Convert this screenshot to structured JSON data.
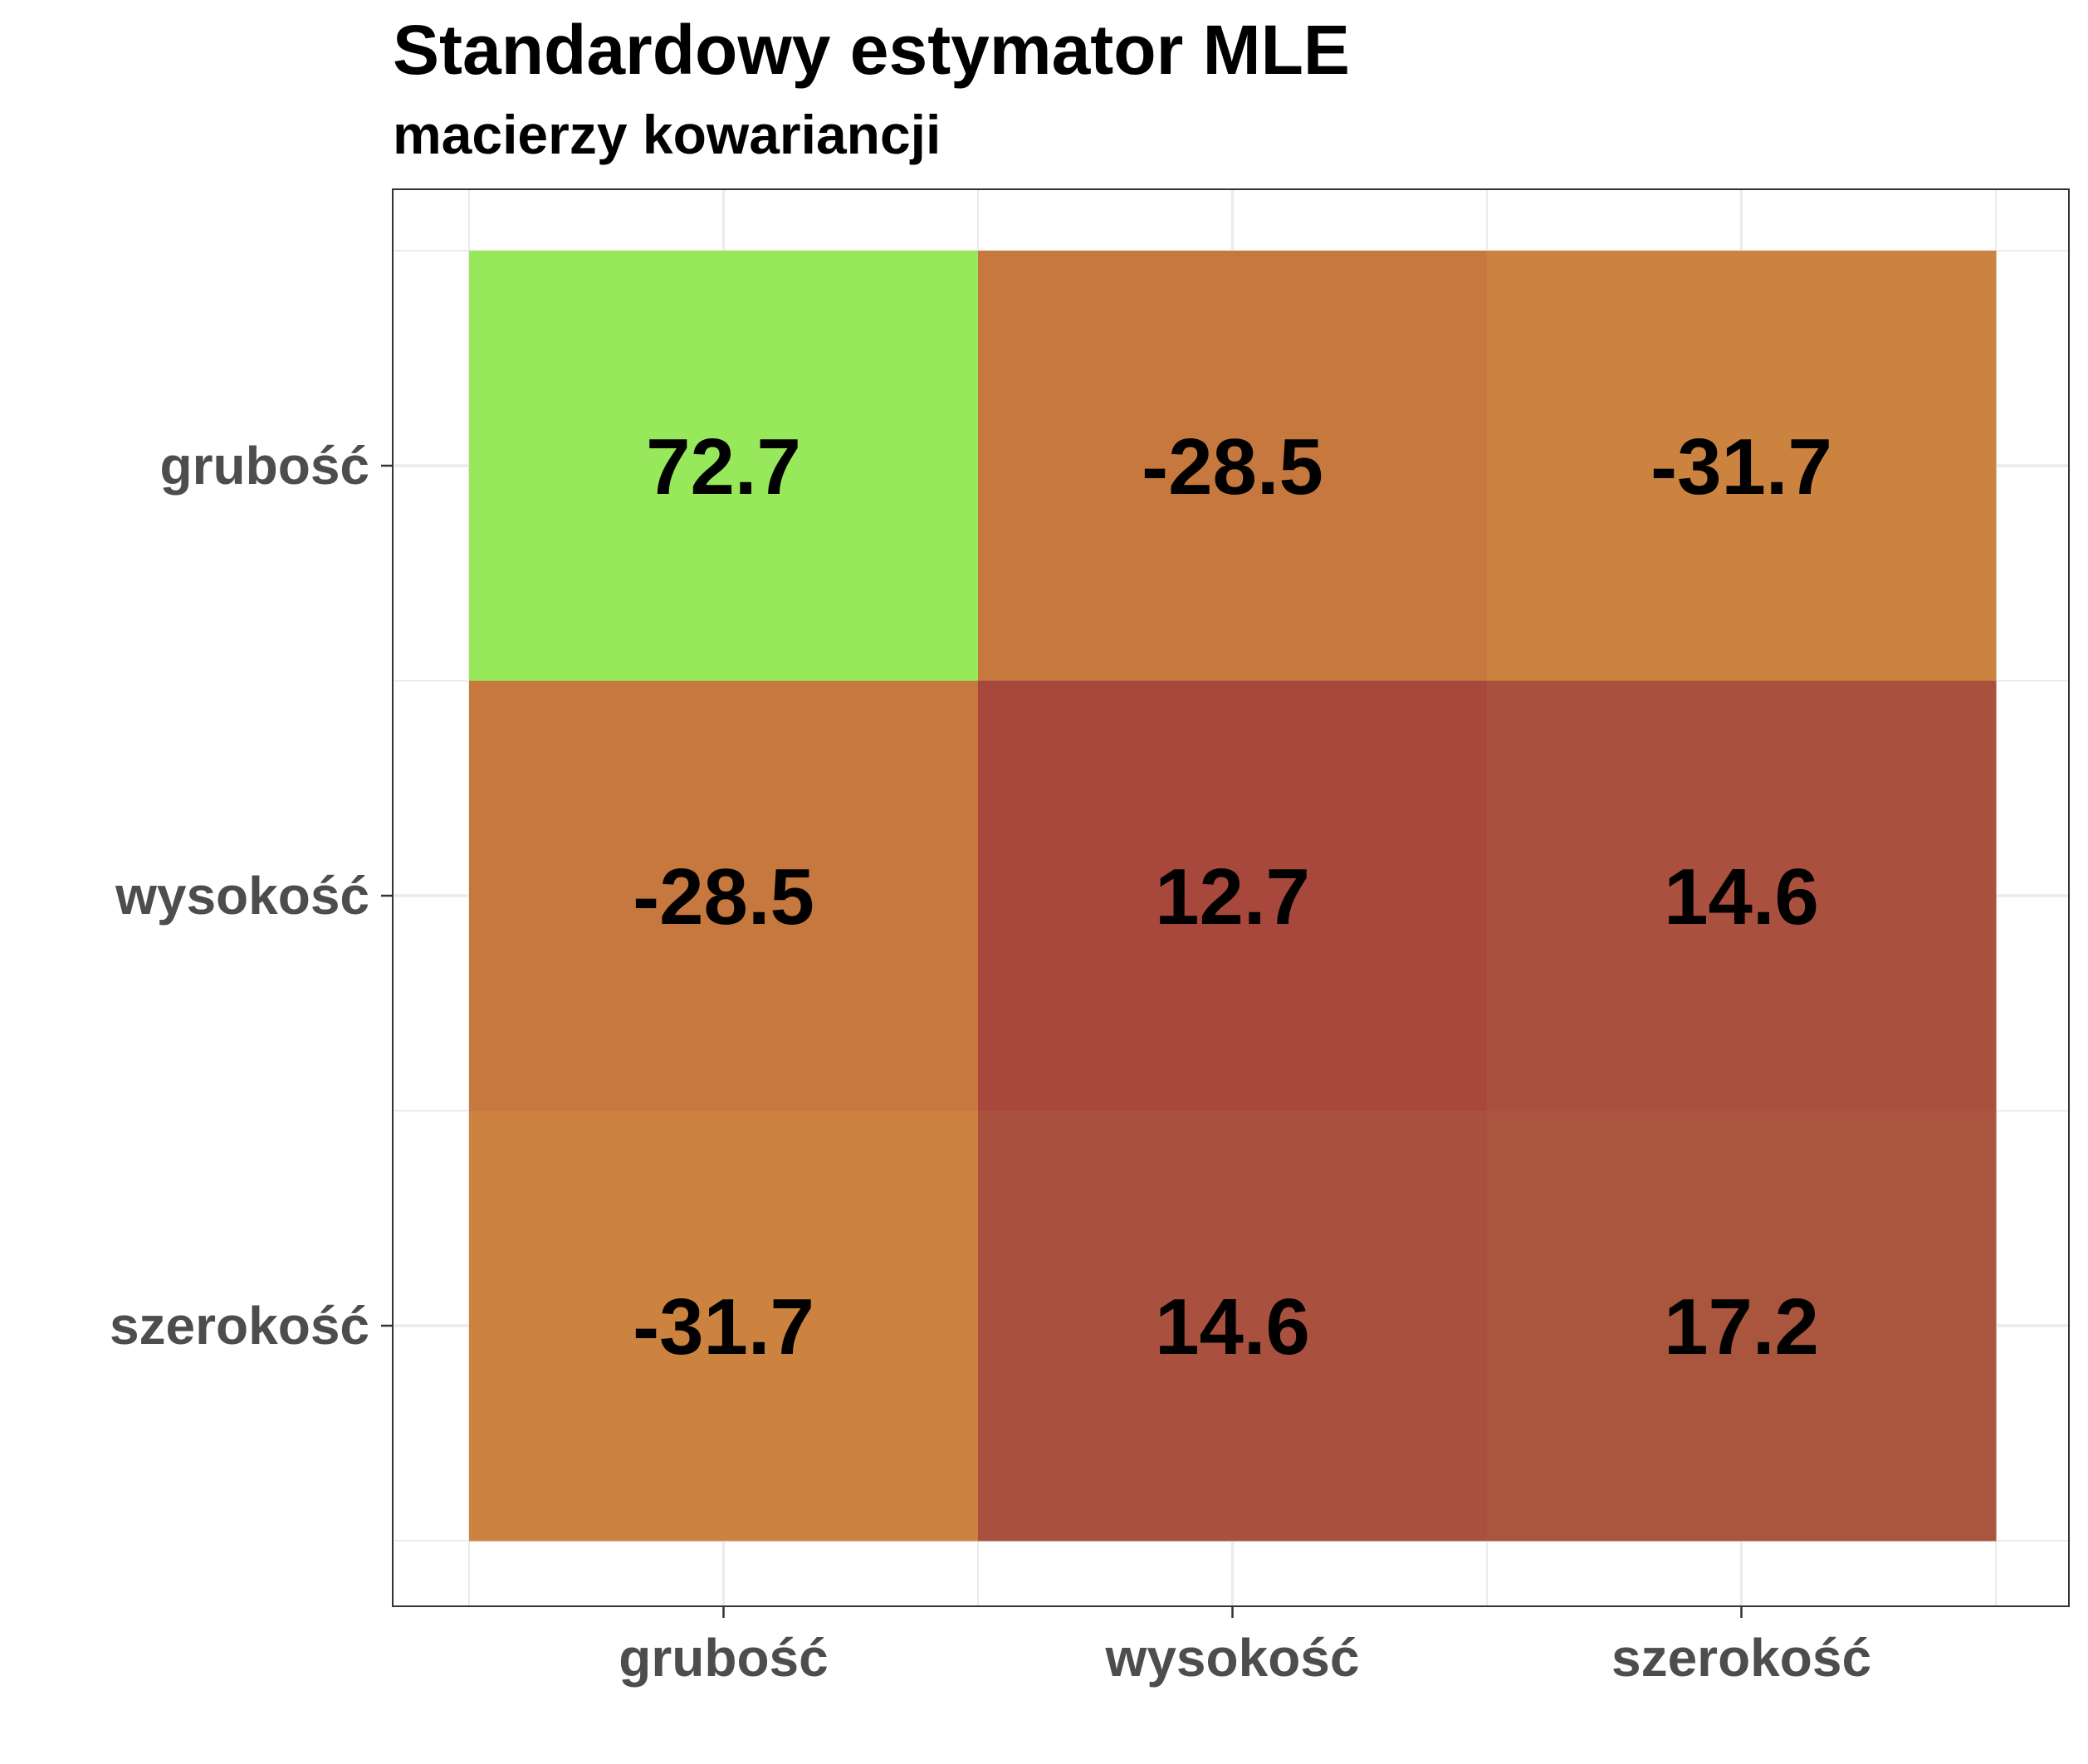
{
  "chart_data": {
    "type": "heatmap",
    "title": "Standardowy estymator MLE",
    "subtitle": "macierzy kowariancji",
    "xlabel": "",
    "ylabel": "",
    "x_categories": [
      "grubość",
      "wysokość",
      "szerokość"
    ],
    "y_categories": [
      "grubość",
      "wysokość",
      "szerokość"
    ],
    "values": [
      [
        72.7,
        -28.5,
        -31.7
      ],
      [
        -28.5,
        12.7,
        14.6
      ],
      [
        -31.7,
        14.6,
        17.2
      ]
    ],
    "cell_labels": [
      [
        "72.7",
        "-28.5",
        "-31.7"
      ],
      [
        "-28.5",
        "12.7",
        "14.6"
      ],
      [
        "-31.7",
        "14.6",
        "17.2"
      ]
    ],
    "cell_colors": [
      [
        "#97e85a",
        "#c6783f",
        "#cb833f"
      ],
      [
        "#c6783f",
        "#a8483d",
        "#a9503f"
      ],
      [
        "#cb833f",
        "#a9503f",
        "#aa563e"
      ]
    ],
    "grid": true,
    "legend": "none"
  }
}
